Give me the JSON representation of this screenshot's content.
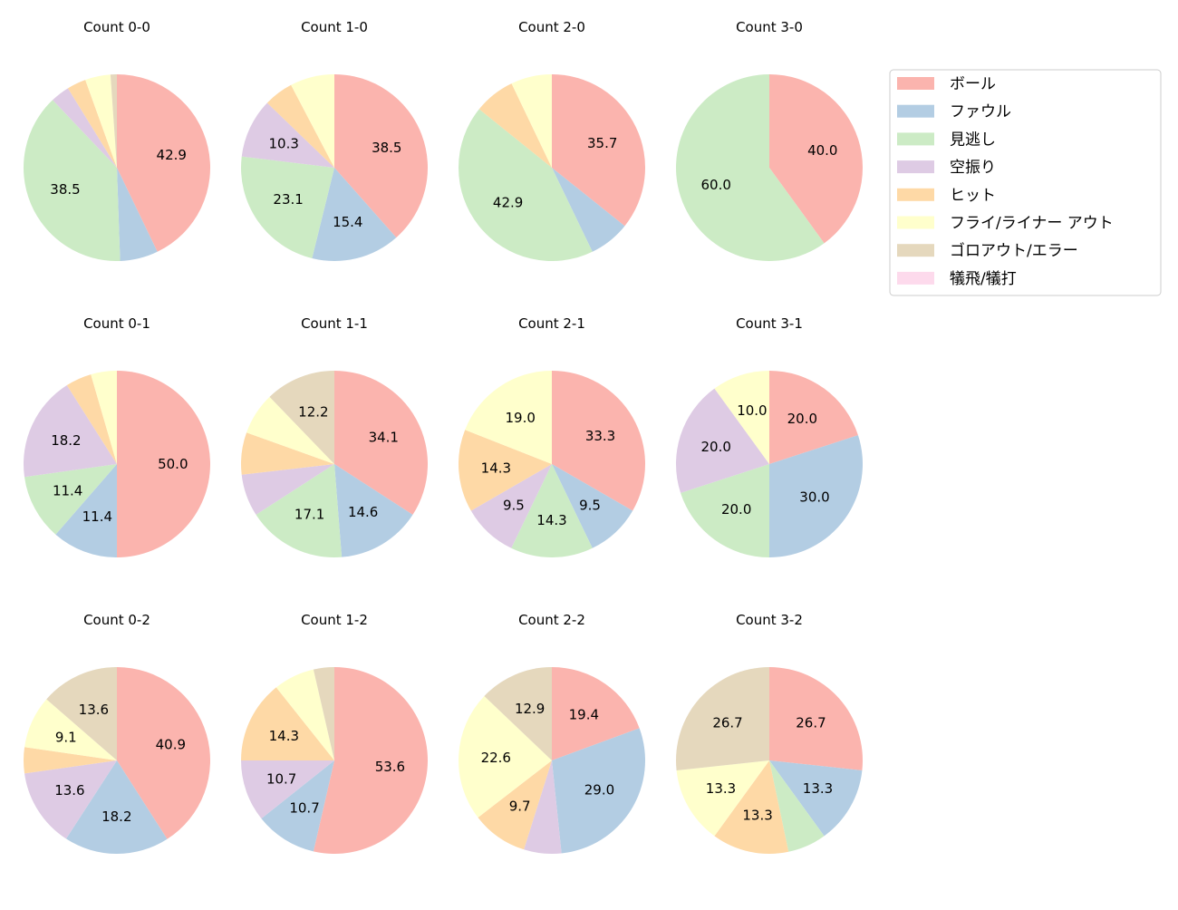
{
  "chart_data": {
    "type": "pie",
    "start_angle": 90,
    "direction": "clockwise",
    "legend_placement": "right",
    "categories": [
      "ボール",
      "ファウル",
      "見逃し",
      "空振り",
      "ヒット",
      "フライ/ライナー アウト",
      "ゴロアウト/エラー",
      "犠飛/犠打"
    ],
    "colors": [
      "#fbb4ae",
      "#b3cde3",
      "#ccebc5",
      "#decbe4",
      "#fed9a6",
      "#ffffcc",
      "#e5d8bd",
      "#fddaec"
    ],
    "charts": [
      {
        "title": "Count 0-0",
        "values": [
          42.9,
          6.6,
          38.5,
          3.3,
          3.3,
          4.4,
          1.1,
          0
        ]
      },
      {
        "title": "Count 1-0",
        "values": [
          38.5,
          15.4,
          23.1,
          10.3,
          5.1,
          7.7,
          0,
          0
        ]
      },
      {
        "title": "Count 2-0",
        "values": [
          35.7,
          7.1,
          42.9,
          0,
          7.1,
          7.1,
          0,
          0
        ]
      },
      {
        "title": "Count 3-0",
        "values": [
          40.0,
          0,
          60.0,
          0,
          0,
          0,
          0,
          0
        ]
      },
      {
        "title": "Count 0-1",
        "values": [
          50.0,
          11.4,
          11.4,
          18.2,
          4.5,
          4.5,
          0,
          0
        ]
      },
      {
        "title": "Count 1-1",
        "values": [
          34.1,
          14.6,
          17.1,
          7.3,
          7.3,
          7.3,
          12.2,
          0
        ]
      },
      {
        "title": "Count 2-1",
        "values": [
          33.3,
          9.5,
          14.3,
          9.5,
          14.3,
          19.0,
          0,
          0
        ]
      },
      {
        "title": "Count 3-1",
        "values": [
          20.0,
          30.0,
          20.0,
          20.0,
          0,
          10.0,
          0,
          0
        ]
      },
      {
        "title": "Count 0-2",
        "values": [
          40.9,
          18.2,
          0,
          13.6,
          4.5,
          9.1,
          13.6,
          0
        ]
      },
      {
        "title": "Count 1-2",
        "values": [
          53.6,
          10.7,
          0,
          10.7,
          14.3,
          7.1,
          3.6,
          0
        ]
      },
      {
        "title": "Count 2-2",
        "values": [
          19.4,
          29.0,
          0,
          6.5,
          9.7,
          22.6,
          12.9,
          0
        ]
      },
      {
        "title": "Count 3-2",
        "values": [
          26.7,
          13.3,
          6.7,
          0,
          13.3,
          13.3,
          26.7,
          0
        ]
      }
    ]
  }
}
